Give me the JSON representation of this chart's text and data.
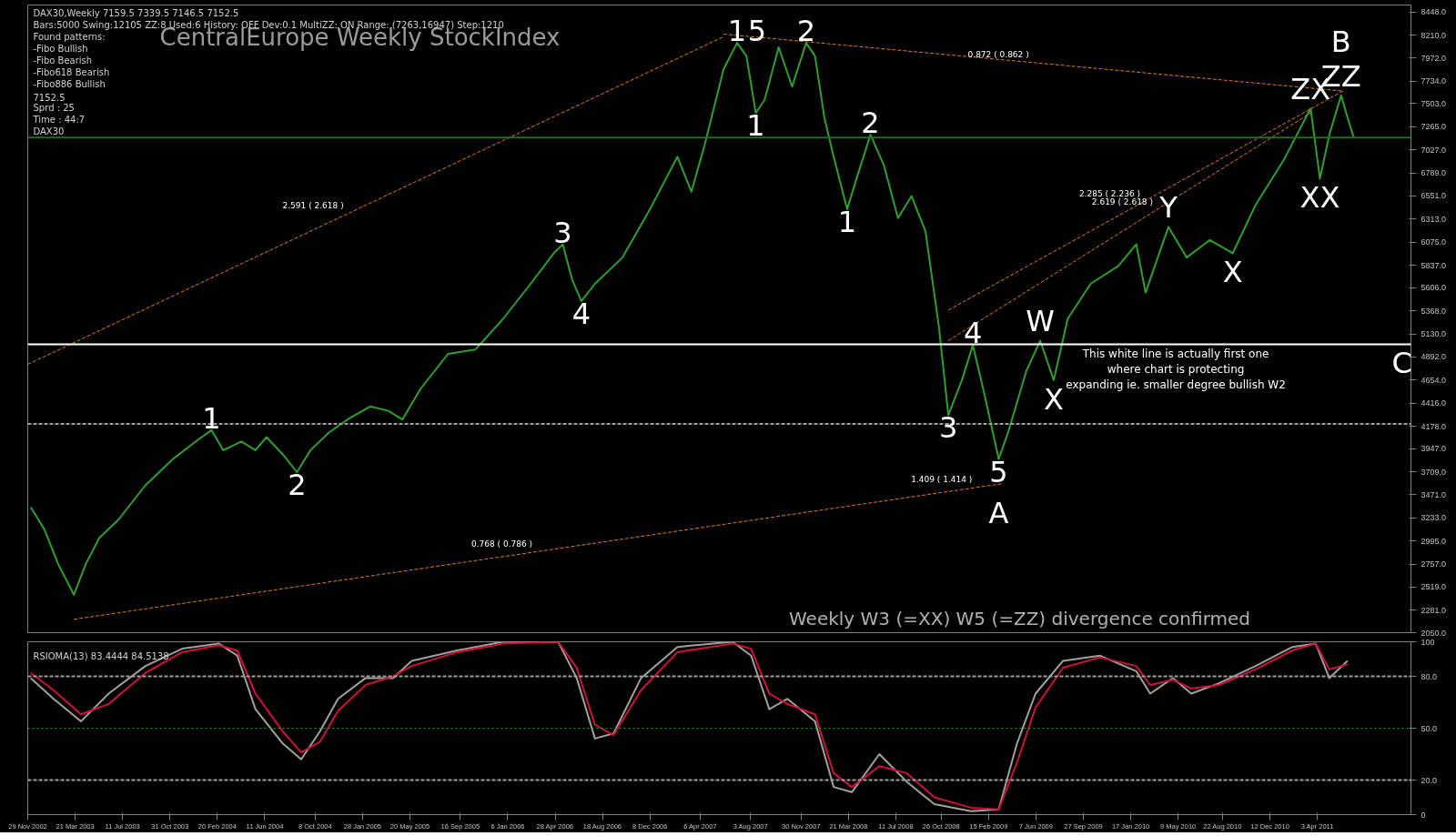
{
  "chart_data": [
    {
      "type": "line",
      "title": "CentralEurope Weekly StockIndex",
      "x": [
        "2002-12-06",
        "2003-01-07",
        "2003-02-09",
        "2003-03-18",
        "2003-04-15",
        "2003-05-17",
        "2003-06-30",
        "2003-09-03",
        "2003-11-07",
        "2003-12-31",
        "2004-02-06",
        "2004-03-05",
        "2004-04-17",
        "2004-05-20",
        "2004-06-15",
        "2004-07-24",
        "2004-08-26",
        "2004-09-27",
        "2004-11-09",
        "2004-12-23",
        "2005-02-15",
        "2005-03-30",
        "2005-05-02",
        "2005-06-14",
        "2005-08-18",
        "2005-10-22",
        "2005-12-26",
        "2006-03-01",
        "2006-04-25",
        "2006-05-16",
        "2006-06-07",
        "2006-06-29",
        "2006-07-31",
        "2006-10-04",
        "2006-12-08",
        "2007-02-11",
        "2007-03-16",
        "2007-04-17",
        "2007-05-31",
        "2007-07-02",
        "2007-07-24",
        "2007-08-15",
        "2007-09-05",
        "2007-10-08",
        "2007-11-09",
        "2007-12-12",
        "2008-01-02",
        "2008-01-24",
        "2008-02-15",
        "2008-03-18",
        "2008-04-09",
        "2008-05-12",
        "2008-06-13",
        "2008-07-16",
        "2008-08-17",
        "2008-09-19",
        "2008-10-21",
        "2008-11-12",
        "2008-12-14",
        "2009-01-09",
        "2009-02-07",
        "2009-03-11",
        "2009-04-02",
        "2009-05-15",
        "2009-06-17",
        "2009-07-19",
        "2009-08-21",
        "2009-10-14",
        "2009-12-18",
        "2010-01-30",
        "2010-02-21",
        "2010-04-16",
        "2010-05-29",
        "2010-07-23",
        "2010-09-15",
        "2010-11-08",
        "2011-01-12",
        "2011-03-07",
        "2011-03-18",
        "2011-04-09",
        "2011-05-01",
        "2011-05-29",
        "2011-06-13",
        "2011-06-28"
      ],
      "series": [
        {
          "color": "#2e9e2e",
          "values": [
            3344,
            3118,
            2757,
            2441,
            2757,
            3028,
            3208,
            3569,
            3840,
            4021,
            4138,
            3931,
            4021,
            3931,
            4066,
            3886,
            3705,
            3931,
            4111,
            4247,
            4382,
            4337,
            4247,
            4563,
            4924,
            4969,
            5285,
            5646,
            5962,
            6053,
            5692,
            5466,
            5646,
            5917,
            6414,
            6956,
            6595,
            7091,
            7859,
            8130,
            7994,
            7407,
            7543,
            8085,
            7678,
            8130,
            7994,
            7362,
            6956,
            6414,
            6730,
            7182,
            6866,
            6324,
            6550,
            6188,
            5195,
            4292,
            4653,
            5014,
            4473,
            3840,
            4111,
            4744,
            5060,
            4653,
            5285,
            5646,
            5827,
            6053,
            5556,
            6233,
            5917,
            6098,
            5962,
            6459,
            6911,
            7362,
            7453,
            6730,
            7182,
            7588,
            7362,
            7152.5
          ]
        },
        {
          "type": "line",
          "color": "#e07a20",
          "line_style": "dashed",
          "x": [
            "2002-11-29",
            "2007-05-31"
          ],
          "values": [
            4816,
            8193
          ]
        },
        {
          "type": "line",
          "color": "#e07a20",
          "line_style": "dashed",
          "x": [
            "2003-03-18",
            "2009-03-22"
          ],
          "values": [
            2188,
            3588
          ]
        },
        {
          "type": "line",
          "color": "#e07a20",
          "line_style": "dashed",
          "x": [
            "2007-05-31",
            "2011-06-02"
          ],
          "values": [
            8220,
            7633
          ]
        },
        {
          "type": "line",
          "color": "#e07a20",
          "line_style": "dashed",
          "x": [
            "2008-11-12",
            "2011-06-02"
          ],
          "values": [
            5375,
            7633
          ]
        },
        {
          "type": "line",
          "color": "#e07a20",
          "line_style": "dashed",
          "x": [
            "2008-11-12",
            "2011-03-18"
          ],
          "values": [
            5060,
            7407
          ]
        }
      ],
      "xlim": [
        "2002-11-29",
        "2011-11-10"
      ],
      "ylim": [
        2050,
        8520
      ],
      "yticks": [
        {
          "value": 8448,
          "label": "8448.0"
        },
        {
          "value": 8210,
          "label": "8210.0"
        },
        {
          "value": 7972,
          "label": "7972.0"
        },
        {
          "value": 7734,
          "label": "7734.0"
        },
        {
          "value": 7503,
          "label": "7503.0"
        },
        {
          "value": 7265,
          "label": "7265.0"
        },
        {
          "value": 7027,
          "label": "7027.0"
        },
        {
          "value": 6789,
          "label": "6789.0"
        },
        {
          "value": 6551,
          "label": "6551.0"
        },
        {
          "value": 6313,
          "label": "6313.0"
        },
        {
          "value": 6075,
          "label": "6075.0"
        },
        {
          "value": 5837,
          "label": "5837.0"
        },
        {
          "value": 5606,
          "label": "5606.0"
        },
        {
          "value": 5368,
          "label": "5368.0"
        },
        {
          "value": 5130,
          "label": "5130.0"
        },
        {
          "value": 4892,
          "label": "4892.0"
        },
        {
          "value": 4654,
          "label": "4654.0"
        },
        {
          "value": 4416,
          "label": "4416.0"
        },
        {
          "value": 4178,
          "label": "4178.0"
        },
        {
          "value": 3947,
          "label": "3947.0"
        },
        {
          "value": 3709,
          "label": "3709.0"
        },
        {
          "value": 3471,
          "label": "3471.0"
        },
        {
          "value": 3233,
          "label": "3233.0"
        },
        {
          "value": 2995,
          "label": "2995.0"
        },
        {
          "value": 2757,
          "label": "2757.0"
        },
        {
          "value": 2519,
          "label": "2519.0"
        },
        {
          "value": 2281,
          "label": "2281.0"
        },
        {
          "value": 2050,
          "label": "2050.0"
        }
      ],
      "tick_labels": "y",
      "ref_lines": [
        {
          "axis": "y",
          "value": 5023,
          "color": "#ffffff",
          "line_style": "solid",
          "label": "This white line is actually first one\nwhere chart is protecting\nexpanding ie. smaller degree bullish W2"
        },
        {
          "axis": "y",
          "value": 4202,
          "color": "#a0a0a0",
          "line_style": "dashed"
        },
        {
          "axis": "y",
          "value": 7152.5,
          "color": "#1f6f1f",
          "line_style": "solid"
        }
      ],
      "annotations": [
        "DAX30,Weekly  7159.5 7339.5 7146.5 7152.5",
        "Bars:5000  Swing:12105  ZZ:8  Used:6  History: OFF Dev:0.1  MultiZZ: ON  Range: (7263,16947)  Step:1210",
        "Found patterns:",
        "-Fibo Bullish",
        "-Fibo Bearish",
        "-Fibo618 Bearish",
        "-Fibo886 Bullish",
        "7152.5",
        "Sprd :  25",
        "Time :  44:7",
        "DAX30",
        {
          "text": "1",
          "x": "2007-07-02",
          "y": 8130
        },
        {
          "text": "5",
          "x": "2007-07-02",
          "y": 8130
        },
        {
          "text": "2",
          "x": "2007-12-12",
          "y": 8130
        },
        {
          "text": "1",
          "x": "2007-08-15",
          "y": 7407
        },
        {
          "text": "2",
          "x": "2008-05-12",
          "y": 7182
        },
        {
          "text": "1",
          "x": "2008-03-18",
          "y": 6414
        },
        {
          "text": "3",
          "x": "2006-05-16",
          "y": 6053
        },
        {
          "text": "4",
          "x": "2006-06-29",
          "y": 5466
        },
        {
          "text": "1",
          "x": "2004-02-06",
          "y": 4138
        },
        {
          "text": "2",
          "x": "2004-08-26",
          "y": 3705
        },
        {
          "text": "3",
          "x": "2008-11-12",
          "y": 4292
        },
        {
          "text": "4",
          "x": "2009-01-09",
          "y": 5014
        },
        {
          "text": "5",
          "x": "2009-03-11",
          "y": 3840
        },
        {
          "text": "A",
          "x": "2009-03-11",
          "y": 3840
        },
        {
          "text": "W",
          "x": "2009-06-17",
          "y": 5060
        },
        {
          "text": "X",
          "x": "2009-07-19",
          "y": 4653
        },
        {
          "text": "Y",
          "x": "2010-04-16",
          "y": 6233
        },
        {
          "text": "X",
          "x": "2010-09-15",
          "y": 5962
        },
        {
          "text": "ZX",
          "x": "2011-03-18",
          "y": 7453
        },
        {
          "text": "ZZ",
          "x": "2011-05-29",
          "y": 7588
        },
        {
          "text": "B",
          "x": "2011-05-29",
          "y": 7588
        },
        {
          "text": "XX",
          "x": "2011-04-09",
          "y": 6730
        },
        {
          "text": "C",
          "x": "2011-10-20",
          "y": 5023
        },
        {
          "text": "2.591 ( 2.618 )",
          "x": "2004-12-23",
          "y": 6365
        },
        {
          "text": "0.768 ( 0.786 )",
          "x": "2006-03-14",
          "y": 2884
        },
        {
          "text": "0.872 ( 0.862 )",
          "x": "2009-05-30",
          "y": 7927
        },
        {
          "text": "1.409 ( 1.414 )",
          "x": "2009-01-16",
          "y": 3547
        },
        {
          "text": "2.285 ( 2.236 )",
          "x": "2010-02-17",
          "y": 6494
        },
        {
          "text": "2.619 ( 2.618 )",
          "x": "2010-03-19",
          "y": 6409
        }
      ],
      "subtitle": "Weekly W3 (=XX) W5 (=ZZ) divergence confirmed"
    },
    {
      "type": "line",
      "x": [
        "2002-12-06",
        "2003-01-29",
        "2003-04-04",
        "2003-06-08",
        "2003-09-03",
        "2003-11-29",
        "2004-02-23",
        "2004-04-07",
        "2004-05-20",
        "2004-07-24",
        "2004-09-05",
        "2004-10-19",
        "2004-12-01",
        "2005-02-04",
        "2005-04-10",
        "2005-05-24",
        "2005-09-09",
        "2005-12-26",
        "2006-05-05",
        "2006-06-18",
        "2006-07-31",
        "2006-09-13",
        "2006-11-17",
        "2007-02-11",
        "2007-06-21",
        "2007-08-04",
        "2007-09-16",
        "2007-10-29",
        "2008-01-02",
        "2008-02-15",
        "2008-03-29",
        "2008-06-02",
        "2008-08-06",
        "2008-10-10",
        "2009-01-05",
        "2009-03-11",
        "2009-04-23",
        "2009-06-06",
        "2009-08-10",
        "2009-11-05",
        "2010-01-30",
        "2010-03-04",
        "2010-04-27",
        "2010-06-09",
        "2010-08-13",
        "2010-11-08",
        "2011-02-03",
        "2011-03-30",
        "2011-05-01",
        "2011-06-13"
      ],
      "series": [
        {
          "color": "#a0a0a0",
          "values": [
            79,
            67,
            54,
            70,
            86,
            96,
            99,
            92,
            61,
            41,
            32,
            48,
            67,
            79,
            79,
            89,
            95,
            100,
            100,
            79,
            44,
            47,
            79,
            97,
            100,
            92,
            61,
            67,
            54,
            16,
            13,
            35,
            19,
            6,
            2,
            3,
            41,
            70,
            89,
            92,
            83,
            70,
            79,
            70,
            76,
            86,
            97,
            99,
            79,
            89
          ]
        },
        {
          "color": "#d0103a",
          "values": [
            82,
            72,
            58,
            64,
            82,
            94,
            98,
            95,
            70,
            48,
            36,
            42,
            60,
            75,
            80,
            86,
            94,
            99,
            100,
            85,
            52,
            46,
            72,
            94,
            99,
            96,
            70,
            64,
            58,
            24,
            16,
            28,
            24,
            10,
            4,
            3,
            30,
            62,
            85,
            91,
            86,
            75,
            78,
            73,
            75,
            84,
            95,
            99,
            84,
            87
          ]
        }
      ],
      "xlim": [
        "2002-11-29",
        "2011-11-10"
      ],
      "ylim": [
        0,
        100
      ],
      "yticks": [
        0,
        {
          "value": 20,
          "label": "20.0"
        },
        {
          "value": 50,
          "label": "50.0"
        },
        {
          "value": 80,
          "label": "80.0"
        },
        100
      ],
      "xticks": [
        {
          "value": "2002-11-29",
          "label": "29 Nov 2002"
        },
        {
          "value": "2003-03-21",
          "label": "21 Mar 2003"
        },
        {
          "value": "2003-07-11",
          "label": "11 Jul 2003"
        },
        {
          "value": "2003-10-31",
          "label": "31 Oct 2003"
        },
        {
          "value": "2004-02-20",
          "label": "20 Feb 2004"
        },
        {
          "value": "2004-06-11",
          "label": "11 Jun 2004"
        },
        {
          "value": "2004-10-08",
          "label": "8 Oct 2004"
        },
        {
          "value": "2005-01-28",
          "label": "28 Jan 2005"
        },
        {
          "value": "2005-05-20",
          "label": "20 May 2005"
        },
        {
          "value": "2005-09-16",
          "label": "16 Sep 2005"
        },
        {
          "value": "2006-01-06",
          "label": "6 Jan 2006"
        },
        {
          "value": "2006-04-28",
          "label": "28 Apr 2006"
        },
        {
          "value": "2006-08-18",
          "label": "18 Aug 2006"
        },
        {
          "value": "2006-12-08",
          "label": "8 Dec 2006"
        },
        {
          "value": "2007-04-06",
          "label": "6 Apr 2007"
        },
        {
          "value": "2007-08-03",
          "label": "3 Aug 2007"
        },
        {
          "value": "2007-11-30",
          "label": "30 Nov 2007"
        },
        {
          "value": "2008-03-21",
          "label": "21 Mar 2008"
        },
        {
          "value": "2008-07-11",
          "label": "11 Jul 2008"
        },
        {
          "value": "2008-10-26",
          "label": "26 Oct 2008"
        },
        {
          "value": "2009-02-15",
          "label": "15 Feb 2009"
        },
        {
          "value": "2009-06-07",
          "label": "7 Jun 2009"
        },
        {
          "value": "2009-09-27",
          "label": "27 Sep 2009"
        },
        {
          "value": "2010-01-17",
          "label": "17 Jan 2010"
        },
        {
          "value": "2010-05-09",
          "label": "9 May 2010"
        },
        {
          "value": "2010-08-22",
          "label": "22 Aug 2010"
        },
        {
          "value": "2010-12-12",
          "label": "12 Dec 2010"
        },
        {
          "value": "2011-04-03",
          "label": "3 Apr 2011"
        }
      ],
      "ref_lines": [
        {
          "axis": "y",
          "value": 80,
          "color": "#a0a0a0",
          "line_style": "dashed"
        },
        {
          "axis": "y",
          "value": 50,
          "color": "#1f9f1f",
          "line_style": "dotted"
        },
        {
          "axis": "y",
          "value": 20,
          "color": "#a0a0a0",
          "line_style": "dashed"
        }
      ],
      "annotations": [
        "RSIOMA(13) 83.4444 84.5138"
      ]
    }
  ]
}
